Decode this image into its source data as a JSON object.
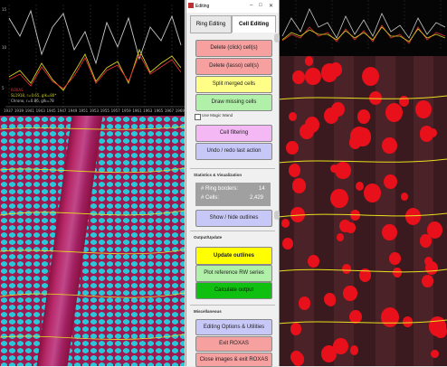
{
  "window": {
    "title": "Editing"
  },
  "tabs": [
    {
      "label": "Ring Editing"
    },
    {
      "label": "Cell Editing"
    }
  ],
  "buttons": {
    "delete_click": "Delete (click) cell(s)",
    "delete_lasso": "Delete (lasso) cell(s)",
    "split_merged": "Split merged cells",
    "draw_missing": "Draw missing cells",
    "cell_filtering": "Cell filtering",
    "undo_redo": "Undo / redo last action",
    "show_hide": "Show / hide outlines",
    "update_outlines": "Update outlines",
    "plot_ref": "Plot reference RW series",
    "calc_output": "Calculate output",
    "editing_options": "Editing Options & Utilities",
    "exit_roxas": "Exit ROXAS",
    "close_images": "Close images & exit ROXAS"
  },
  "magic_wand_label": "Use Magic Wand",
  "sections": {
    "stats": "Statistics & Visualization",
    "output": "Output/Update",
    "misc": "Miscellaneous"
  },
  "stats": {
    "ring_borders_label": "# Ring borders:",
    "ring_borders_value": "14",
    "cells_label": "# Cells:",
    "cells_value": "2,429"
  },
  "chart": {
    "legend": [
      "ROXAS",
      "SL1918, r=0.65, glk=80*",
      "Chrono, r=0.86, glk=78"
    ],
    "x_ticks": [
      "1937",
      "1939",
      "1941",
      "1943",
      "1945",
      "1947",
      "1949",
      "1951",
      "1953",
      "1955",
      "1957",
      "1959",
      "1961",
      "1963",
      "1965",
      "1967",
      "1969"
    ],
    "y_ticks": [
      "15",
      "10",
      "5"
    ]
  },
  "colors": {
    "red_btn": "#f6a0a0",
    "yellow_btn": "#ffff88",
    "green_btn": "#b0f0a8",
    "pink_btn": "#f4b8f4",
    "lavender_btn": "#c8c8f8",
    "bright_yellow": "#ffff00",
    "bright_green": "#10c010"
  }
}
